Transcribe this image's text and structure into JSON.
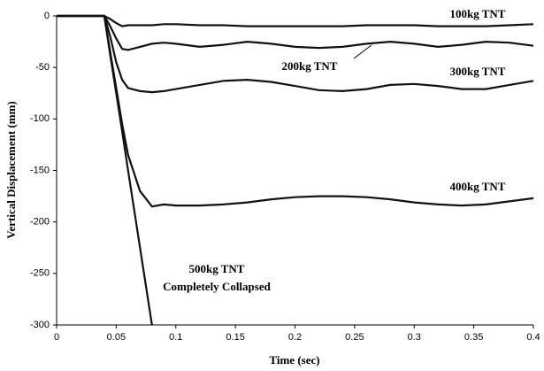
{
  "chart_data": {
    "type": "line",
    "x_label": "Time (sec)",
    "y_label": "Vertical Displacement (mm)",
    "x": [
      0,
      0.01,
      0.02,
      0.03,
      0.04,
      0.045,
      0.05,
      0.055,
      0.06,
      0.07,
      0.08,
      0.09,
      0.1,
      0.12,
      0.14,
      0.16,
      0.18,
      0.2,
      0.22,
      0.24,
      0.26,
      0.28,
      0.3,
      0.32,
      0.34,
      0.36,
      0.38,
      0.4
    ],
    "series": [
      {
        "name": "100kg TNT",
        "color": "#111111",
        "values": [
          0,
          0,
          0,
          0,
          0,
          -3,
          -7,
          -10,
          -9,
          -9,
          -9,
          -8,
          -8,
          -9,
          -9,
          -10,
          -10,
          -10,
          -10,
          -10,
          -9,
          -9,
          -9,
          -10,
          -10,
          -10,
          -9,
          -8
        ]
      },
      {
        "name": "200kg TNT",
        "color": "#111111",
        "values": [
          0,
          0,
          0,
          0,
          0,
          -10,
          -22,
          -32,
          -33,
          -30,
          -27,
          -26,
          -27,
          -30,
          -28,
          -25,
          -27,
          -30,
          -31,
          -30,
          -27,
          -25,
          -27,
          -30,
          -28,
          -25,
          -26,
          -29
        ]
      },
      {
        "name": "300kg TNT",
        "color": "#111111",
        "values": [
          0,
          0,
          0,
          0,
          0,
          -20,
          -45,
          -62,
          -70,
          -73,
          -74,
          -73,
          -71,
          -67,
          -63,
          -62,
          -64,
          -68,
          -72,
          -73,
          -71,
          -67,
          -66,
          -68,
          -71,
          -71,
          -67,
          -63
        ]
      },
      {
        "name": "400kg TNT",
        "color": "#111111",
        "values": [
          0,
          0,
          0,
          0,
          0,
          -35,
          -70,
          -105,
          -135,
          -170,
          -185,
          -183,
          -184,
          -184,
          -183,
          -181,
          -178,
          -176,
          -175,
          -175,
          -176,
          -178,
          -181,
          -183,
          -184,
          -183,
          -180,
          -177
        ]
      },
      {
        "name": "500kg TNT",
        "color": "#111111",
        "values": [
          0,
          0,
          0,
          0,
          0,
          -38,
          -75,
          -112,
          -150,
          -225,
          -300,
          null,
          null,
          null,
          null,
          null,
          null,
          null,
          null,
          null,
          null,
          null,
          null,
          null,
          null,
          null,
          null,
          null
        ]
      }
    ],
    "annotations": [
      "Completely Collapsed"
    ],
    "xlim": [
      0,
      0.4
    ],
    "xticks": [
      0,
      0.05,
      0.1,
      0.15,
      0.2,
      0.25,
      0.3,
      0.35,
      0.4
    ],
    "ylim": [
      -300,
      0
    ],
    "yticks": [
      0,
      -50,
      -100,
      -150,
      -200,
      -250,
      -300
    ],
    "grid": false
  }
}
